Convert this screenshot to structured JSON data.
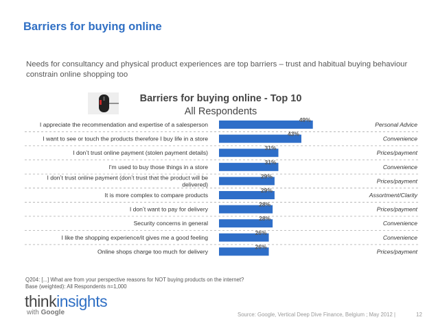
{
  "page": {
    "title": "Barriers for buying online",
    "subtitle": "Needs for consultancy and physical product experiences are top barriers – trust and habitual buying behaviour constrain online shopping too",
    "footnote_line1": "Q204: [...] What are from your perspective reasons for NOT buying products on the internet?",
    "footnote_line2": "Base (weighted): All Respondents n=1,000",
    "logo_think": "think",
    "logo_insights": "insights",
    "logo_with": "with",
    "logo_google": "Google",
    "source": "Source: Google, Vertical Deep Dive Finance, Belgium ; May 2012 |",
    "page_number": "12"
  },
  "colors": {
    "bar": "#2e6ec8",
    "title": "#2f6fc4",
    "divider": "#aaaaaa"
  },
  "chart_data": {
    "type": "bar",
    "orientation": "horizontal",
    "title": "Barriers for buying online - Top 10",
    "subtitle": "All Respondents",
    "value_suffix": "%",
    "xlim": [
      0,
      100
    ],
    "categories": [
      [
        "I appreciate the recommendation and expertise of a salesperson"
      ],
      [
        "I want to see or touch the products therefore I buy life in a store"
      ],
      [
        "I donʼt trust online payment (stolen payment details)"
      ],
      [
        "I'm used to buy those things in a store"
      ],
      [
        "I donʼt trust online payment (donʼt trust that the product will be",
        "delivered)"
      ],
      [
        "It is more complex to compare products"
      ],
      [
        "I donʼt want to pay for delivery"
      ],
      [
        "Security concerns in general"
      ],
      [
        "I like the shopping experience/it gives me a good feeling"
      ],
      [
        "Online shops charge too much for delivery"
      ]
    ],
    "values": [
      49,
      43,
      31,
      31,
      29,
      29,
      28,
      28,
      26,
      26
    ],
    "groups": [
      "Personal Advice",
      "Convenience",
      "Prices/payment",
      "Convenience",
      "Prices/payment",
      "Assortment/Clarity",
      "Prices/payment",
      "Convenience",
      "Convenience",
      "Prices/payment"
    ]
  }
}
